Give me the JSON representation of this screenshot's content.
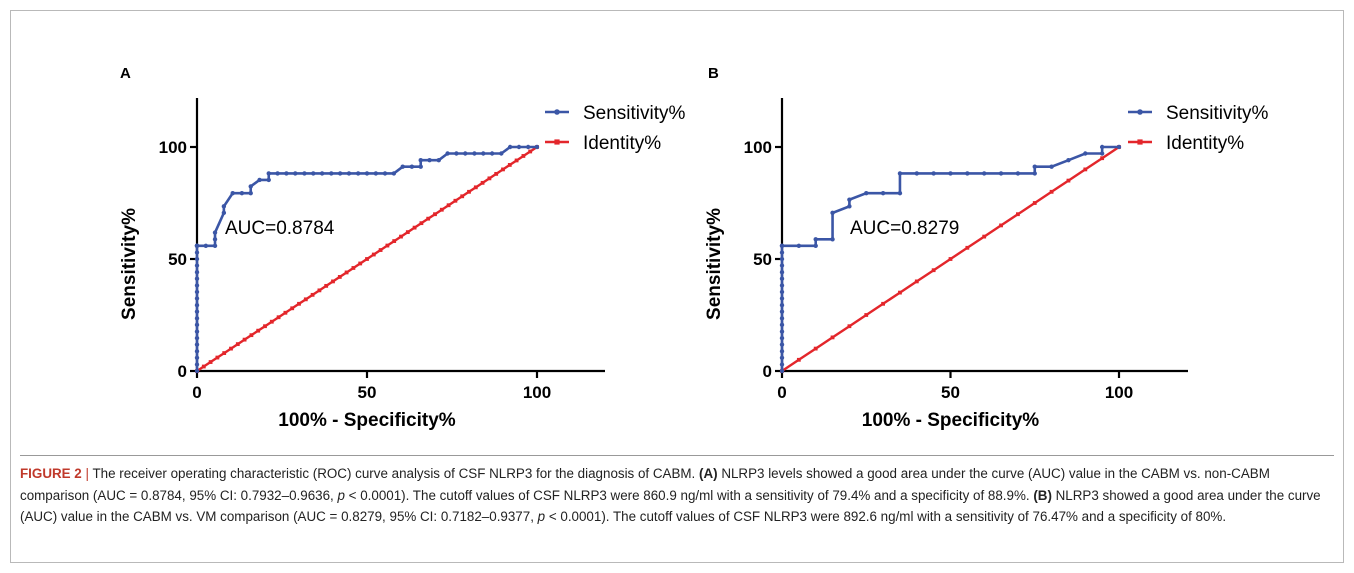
{
  "chart_data": [
    {
      "panel": "A",
      "type": "line",
      "xlabel": "100% - Specificity%",
      "ylabel": "Sensitivity%",
      "xlim": [
        0,
        100
      ],
      "ylim": [
        0,
        100
      ],
      "xticks": [
        "0",
        "50",
        "100"
      ],
      "yticks": [
        "0",
        "50",
        "100"
      ],
      "legend_position": "top-right",
      "annotation": "AUC=0.8784",
      "series": [
        {
          "name": "Sensitivity%",
          "color": "#3b56a6",
          "x": [
            0,
            0,
            0,
            0,
            0,
            0,
            0,
            0,
            0,
            0,
            0,
            0,
            0,
            0,
            0,
            0,
            0,
            0,
            0,
            0,
            0,
            0,
            2.6,
            5.3,
            5.3,
            5.3,
            7.9,
            7.9,
            10.5,
            13.2,
            15.8,
            15.8,
            18.4,
            21.1,
            21.1,
            23.7,
            26.3,
            28.9,
            31.6,
            34.2,
            36.8,
            39.5,
            42.1,
            44.7,
            47.4,
            50,
            52.6,
            55.3,
            57.9,
            60.5,
            63.2,
            65.8,
            65.8,
            68.4,
            71.1,
            73.7,
            76.3,
            78.9,
            81.6,
            84.2,
            86.8,
            89.5,
            92.1,
            94.7,
            97.4,
            100
          ],
          "y": [
            0,
            2.9,
            5.9,
            8.8,
            11.8,
            14.7,
            17.6,
            20.6,
            23.5,
            26.5,
            29.4,
            32.4,
            35.3,
            38.2,
            41.2,
            44.1,
            47.1,
            50,
            52.9,
            55.9,
            55.9,
            55.9,
            55.9,
            55.9,
            58.8,
            61.8,
            70.6,
            73.5,
            79.4,
            79.4,
            79.4,
            82.4,
            85.3,
            85.3,
            88.2,
            88.2,
            88.2,
            88.2,
            88.2,
            88.2,
            88.2,
            88.2,
            88.2,
            88.2,
            88.2,
            88.2,
            88.2,
            88.2,
            88.2,
            91.2,
            91.2,
            91.2,
            94.1,
            94.1,
            94.1,
            97.1,
            97.1,
            97.1,
            97.1,
            97.1,
            97.1,
            97.1,
            100,
            100,
            100,
            100
          ]
        },
        {
          "name": "Identity%",
          "color": "#e3262b",
          "x": [
            0,
            2,
            4,
            6,
            8,
            10,
            12,
            14,
            16,
            18,
            20,
            22,
            24,
            26,
            28,
            30,
            32,
            34,
            36,
            38,
            40,
            42,
            44,
            46,
            48,
            50,
            52,
            54,
            56,
            58,
            60,
            62,
            64,
            66,
            68,
            70,
            72,
            74,
            76,
            78,
            80,
            82,
            84,
            86,
            88,
            90,
            92,
            94,
            96,
            98,
            100
          ],
          "y": [
            0,
            2,
            4,
            6,
            8,
            10,
            12,
            14,
            16,
            18,
            20,
            22,
            24,
            26,
            28,
            30,
            32,
            34,
            36,
            38,
            40,
            42,
            44,
            46,
            48,
            50,
            52,
            54,
            56,
            58,
            60,
            62,
            64,
            66,
            68,
            70,
            72,
            74,
            76,
            78,
            80,
            82,
            84,
            86,
            88,
            90,
            92,
            94,
            96,
            98,
            100
          ]
        }
      ]
    },
    {
      "panel": "B",
      "type": "line",
      "xlabel": "100% - Specificity%",
      "ylabel": "Sensitivity%",
      "xlim": [
        0,
        100
      ],
      "ylim": [
        0,
        100
      ],
      "xticks": [
        "0",
        "50",
        "100"
      ],
      "yticks": [
        "0",
        "50",
        "100"
      ],
      "legend_position": "top-right",
      "annotation": "AUC=0.8279",
      "series": [
        {
          "name": "Sensitivity%",
          "color": "#3b56a6",
          "x": [
            0,
            0,
            0,
            0,
            0,
            0,
            0,
            0,
            0,
            0,
            0,
            0,
            0,
            0,
            0,
            0,
            0,
            0,
            0,
            0,
            0,
            5,
            10,
            10,
            15,
            15,
            20,
            20,
            25,
            30,
            35,
            35,
            40,
            45,
            50,
            55,
            60,
            65,
            70,
            75,
            75,
            80,
            85,
            90,
            95,
            95,
            100
          ],
          "y": [
            0,
            2.9,
            5.9,
            8.8,
            11.8,
            14.7,
            17.6,
            20.6,
            23.5,
            26.5,
            29.4,
            32.4,
            35.3,
            38.2,
            41.2,
            44.1,
            47.1,
            50,
            52.9,
            55.9,
            55.9,
            55.9,
            55.9,
            58.8,
            58.8,
            70.6,
            73.5,
            76.5,
            79.4,
            79.4,
            79.4,
            88.2,
            88.2,
            88.2,
            88.2,
            88.2,
            88.2,
            88.2,
            88.2,
            88.2,
            91.2,
            91.2,
            94.1,
            97.1,
            97.1,
            100,
            100
          ]
        },
        {
          "name": "Identity%",
          "color": "#e3262b",
          "x": [
            0,
            5,
            10,
            15,
            20,
            25,
            30,
            35,
            40,
            45,
            50,
            55,
            60,
            65,
            70,
            75,
            80,
            85,
            90,
            95,
            100
          ],
          "y": [
            0,
            5,
            10,
            15,
            20,
            25,
            30,
            35,
            40,
            45,
            50,
            55,
            60,
            65,
            70,
            75,
            80,
            85,
            90,
            95,
            100
          ]
        }
      ]
    }
  ],
  "caption": {
    "figure_label": "FIGURE 2",
    "separator": "|",
    "intro": " The receiver operating characteristic (ROC) curve analysis of CSF NLRP3 for the diagnosis of CABM. ",
    "a_label": "(A)",
    "a_text_1": " NLRP3 levels showed a good area under the curve (AUC) value in the CABM vs. non-CABM comparison (AUC = 0.8784, 95% CI: 0.7932–0.9636, ",
    "a_p": "p",
    "a_text_2": " < 0.0001). The cutoff values of CSF NLRP3 were 860.9 ng/ml with a sensitivity of 79.4% and a specificity of 88.9%. ",
    "b_label": "(B)",
    "b_text_1": " NLRP3 showed a good area under the curve (AUC) value in the CABM vs. VM comparison (AUC = 0.8279, 95% CI: 0.7182–0.9377, ",
    "b_p": "p",
    "b_text_2": " < 0.0001). The cutoff values of CSF NLRP3 were 892.6 ng/ml with a sensitivity of 76.47% and a specificity of 80%."
  }
}
